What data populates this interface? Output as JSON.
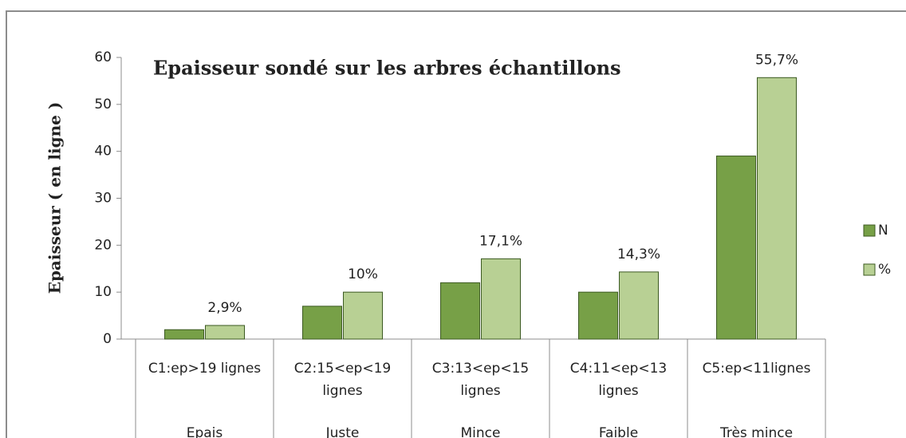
{
  "chart_data": {
    "type": "bar",
    "title": "Epaisseur sondé sur les arbres échantillons",
    "y_label": "Epaisseur ( en ligne )",
    "categories": [
      "C1:ep>19 lignes",
      "C2:15<ep<19 lignes",
      "C3:13<ep<15 lignes",
      "C4:11<ep<13 lignes",
      "C5:ep<11lignes"
    ],
    "groups": [
      "Epais",
      "Juste",
      "Mince",
      "Faible",
      "Très mince"
    ],
    "series": [
      {
        "name": "N",
        "color": "#77a047",
        "values": [
          2,
          7,
          12,
          10,
          39
        ]
      },
      {
        "name": "%",
        "color": "#b8d094",
        "values": [
          2.9,
          10,
          17.1,
          14.3,
          55.7
        ],
        "value_labels": [
          "2,9%",
          "10%",
          "17,1%",
          "14,3%",
          "55,7%"
        ]
      }
    ],
    "ylim": [
      0,
      60
    ],
    "yticks": [
      0,
      10,
      20,
      30,
      40,
      50,
      60
    ],
    "legend": "right"
  }
}
